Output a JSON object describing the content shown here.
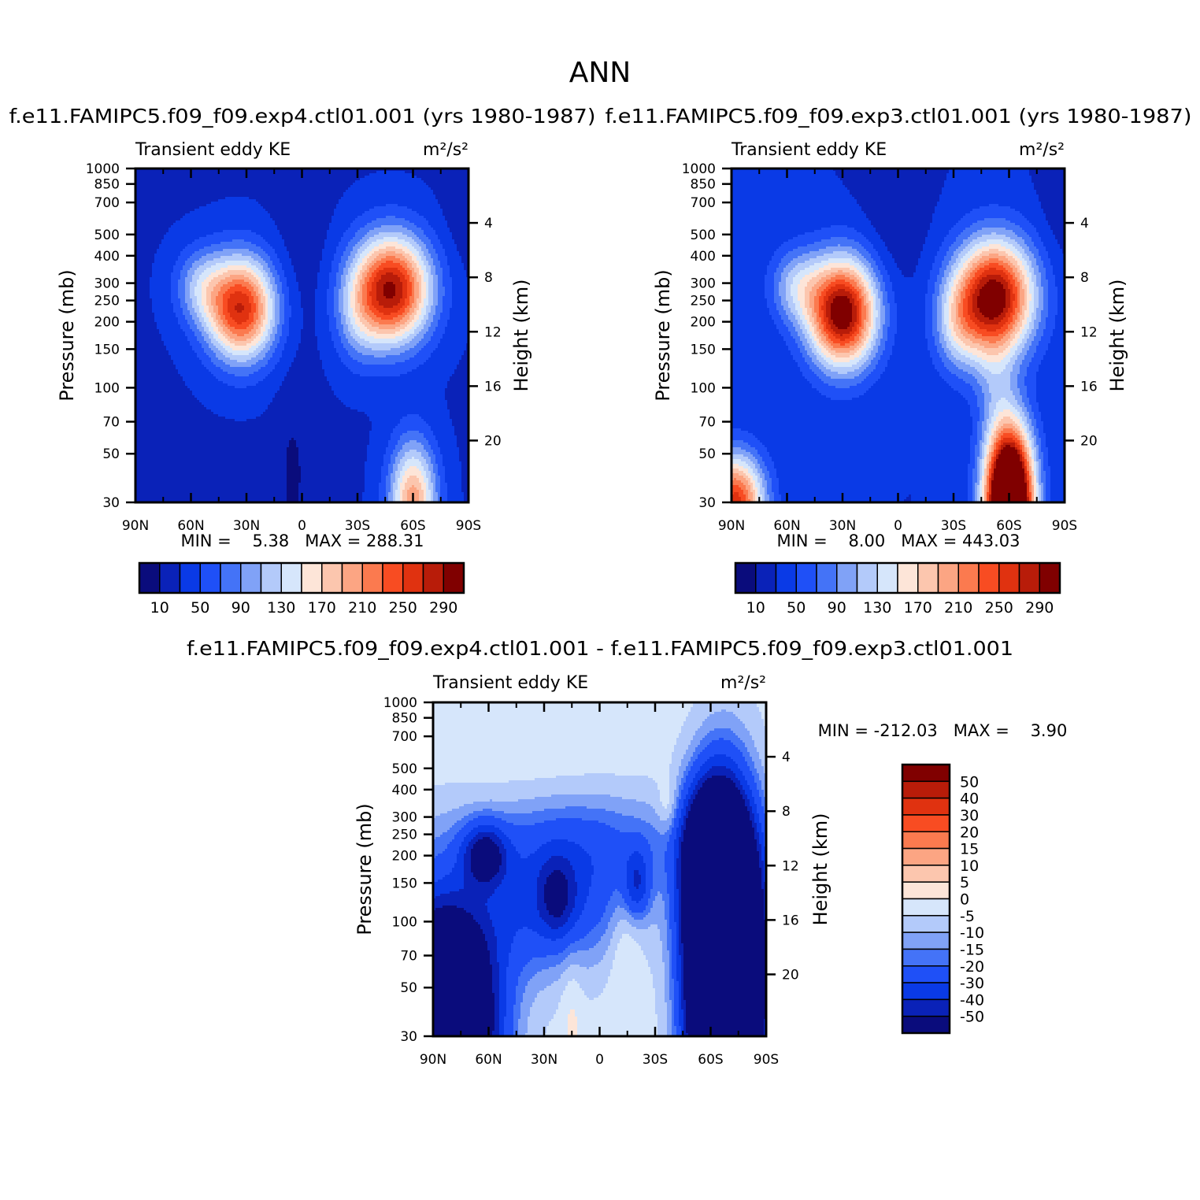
{
  "page_title": "ANN",
  "chart_data": [
    {
      "type": "heatmap",
      "panel": "exp4",
      "title": "f.e11.FAMIPC5.f09_f09.exp4.ctl01.001 (yrs 1980-1987)",
      "left_subtitle": "Transient eddy KE",
      "units": "m²/s²",
      "ylabel": "Pressure (mb)",
      "ylabel_right": "Height (km)",
      "x_ticks": [
        "90N",
        "60N",
        "30N",
        "0",
        "30S",
        "60S",
        "90S"
      ],
      "y_ticks": [
        "30",
        "50",
        "70",
        "100",
        "150",
        "200",
        "250",
        "300",
        "400",
        "500",
        "700",
        "850",
        "1000"
      ],
      "y_ticks_right": [
        "20",
        "16",
        "12",
        "8",
        "4"
      ],
      "xlim": [
        90,
        -90
      ],
      "ylim": [
        1000,
        30
      ],
      "stats": "MIN =    5.38   MAX = 288.31",
      "min": 5.38,
      "max": 288.31,
      "colorbar_ticks": [
        "10",
        "50",
        "90",
        "130",
        "170",
        "210",
        "250",
        "290"
      ],
      "levels": [
        10,
        30,
        50,
        70,
        90,
        110,
        130,
        150,
        170,
        190,
        210,
        230,
        250,
        270,
        290
      ],
      "features": [
        {
          "name": "NH jet core",
          "lat": 30,
          "p": 200,
          "value": 270
        },
        {
          "name": "SH jet core",
          "lat": -50,
          "p": 275,
          "value": 288
        },
        {
          "name": "SH stratospheric max",
          "lat": -60,
          "p": 30,
          "value": 170
        }
      ]
    },
    {
      "type": "heatmap",
      "panel": "exp3",
      "title": "f.e11.FAMIPC5.f09_f09.exp3.ctl01.001 (yrs 1980-1987)",
      "left_subtitle": "Transient eddy KE",
      "units": "m²/s²",
      "ylabel": "Pressure (mb)",
      "ylabel_right": "Height (km)",
      "x_ticks": [
        "90N",
        "60N",
        "30N",
        "0",
        "30S",
        "60S",
        "90S"
      ],
      "y_ticks": [
        "30",
        "50",
        "70",
        "100",
        "150",
        "200",
        "250",
        "300",
        "400",
        "500",
        "700",
        "850",
        "1000"
      ],
      "y_ticks_right": [
        "20",
        "16",
        "12",
        "8",
        "4"
      ],
      "xlim": [
        90,
        -90
      ],
      "ylim": [
        1000,
        30
      ],
      "stats": "MIN =    8.00   MAX = 443.03",
      "min": 8.0,
      "max": 443.03,
      "colorbar_ticks": [
        "10",
        "50",
        "90",
        "130",
        "170",
        "210",
        "250",
        "290"
      ],
      "levels": [
        10,
        30,
        50,
        70,
        90,
        110,
        130,
        150,
        170,
        190,
        210,
        230,
        250,
        270,
        290
      ],
      "features": [
        {
          "name": "NH jet core",
          "lat": 30,
          "p": 200,
          "value": 300
        },
        {
          "name": "SH jet core",
          "lat": -50,
          "p": 290,
          "value": 300
        },
        {
          "name": "SH stratospheric max",
          "lat": -60,
          "p": 30,
          "value": 443
        },
        {
          "name": "NH stratospheric max",
          "lat": 85,
          "p": 30,
          "value": 200
        }
      ]
    },
    {
      "type": "heatmap",
      "panel": "difference",
      "title": "f.e11.FAMIPC5.f09_f09.exp4.ctl01.001 - f.e11.FAMIPC5.f09_f09.exp3.ctl01.001",
      "left_subtitle": "Transient eddy KE",
      "units": "m²/s²",
      "ylabel": "Pressure (mb)",
      "ylabel_right": "Height (km)",
      "x_ticks": [
        "90N",
        "60N",
        "30N",
        "0",
        "30S",
        "60S",
        "90S"
      ],
      "y_ticks": [
        "30",
        "50",
        "70",
        "100",
        "150",
        "200",
        "250",
        "300",
        "400",
        "500",
        "700",
        "850",
        "1000"
      ],
      "y_ticks_right": [
        "20",
        "16",
        "12",
        "8",
        "4"
      ],
      "xlim": [
        90,
        -90
      ],
      "ylim": [
        1000,
        30
      ],
      "stats": "MIN = -212.03   MAX =    3.90",
      "min": -212.03,
      "max": 3.9,
      "colorbar_ticks": [
        "50",
        "40",
        "30",
        "20",
        "15",
        "10",
        "5",
        "0",
        "-5",
        "-10",
        "-15",
        "-20",
        "-30",
        "-40",
        "-50"
      ],
      "levels": [
        -50,
        -40,
        -30,
        -20,
        -15,
        -10,
        -5,
        0,
        5,
        10,
        15,
        20,
        30,
        40,
        50
      ]
    }
  ],
  "colormap_main": [
    "#0a0c7c",
    "#0a22b8",
    "#0a3ae6",
    "#1f50f7",
    "#4473f7",
    "#80a2f7",
    "#b3cafa",
    "#d6e6fb",
    "#fde5d8",
    "#fcc6ae",
    "#fca583",
    "#fb7a4f",
    "#f84c22",
    "#e03210",
    "#b81c09",
    "#800000"
  ],
  "colormap_diff": [
    "#0a0c7c",
    "#0a22b8",
    "#0a3ae6",
    "#1f50f7",
    "#4473f7",
    "#80a2f7",
    "#b3cafa",
    "#d6e6fb",
    "#fde5d8",
    "#fcc6ae",
    "#fca583",
    "#fb7a4f",
    "#f84c22",
    "#e03210",
    "#b81c09",
    "#800000"
  ]
}
